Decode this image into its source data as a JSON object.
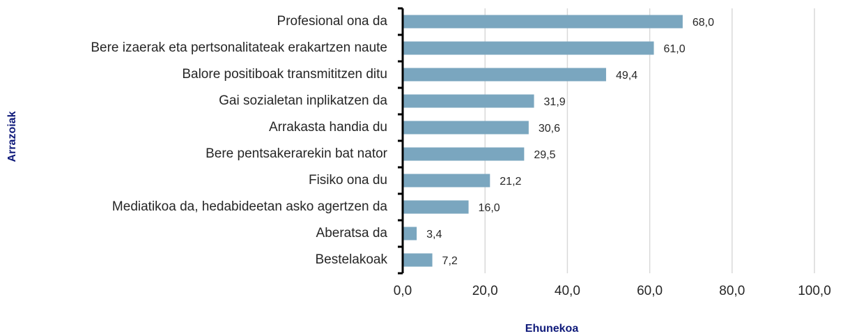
{
  "chart_data": {
    "type": "bar",
    "orientation": "horizontal",
    "x_label": "Ehunekoa",
    "y_label": "Arrazoiak",
    "categories": [
      "Profesional ona da",
      "Bere izaerak eta pertsonalitateak erakartzen naute",
      "Balore positiboak transmititzen ditu",
      "Gai sozialetan inplikatzen da",
      "Arrakasta handia du",
      "Bere pentsakerarekin bat nator",
      "Fisiko ona du",
      "Mediatikoa da, hedabideetan asko agertzen da",
      "Aberatsa da",
      "Bestelakoak"
    ],
    "values": [
      68.0,
      61.0,
      49.4,
      31.9,
      30.6,
      29.5,
      21.2,
      16.0,
      3.4,
      7.2
    ],
    "value_labels": [
      "68,0",
      "61,0",
      "49,4",
      "31,9",
      "30,6",
      "29,5",
      "21,2",
      "16,0",
      "3,4",
      "7,2"
    ],
    "color": "#7aa6bf",
    "xlim": [
      0,
      100
    ],
    "xticks": [
      {
        "value": 0,
        "label": "0,0"
      },
      {
        "value": 20,
        "label": "20,0"
      },
      {
        "value": 40,
        "label": "40,0"
      },
      {
        "value": 60,
        "label": "60,0"
      },
      {
        "value": 80,
        "label": "80,0"
      },
      {
        "value": 100,
        "label": "100,0"
      }
    ],
    "grid": true
  }
}
